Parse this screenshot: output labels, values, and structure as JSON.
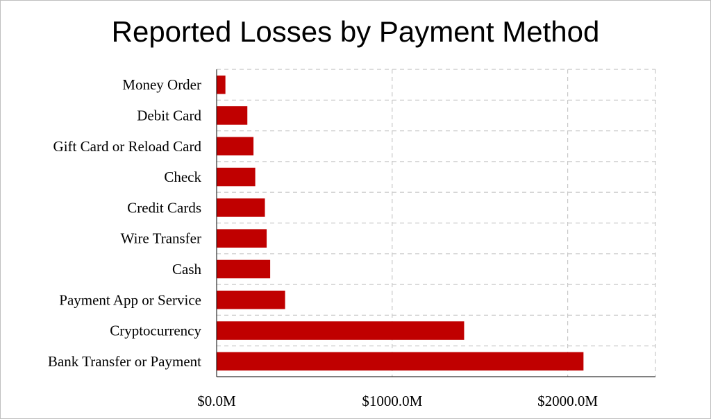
{
  "chart_data": {
    "type": "bar",
    "orientation": "horizontal",
    "title": "Reported Losses by Payment Method",
    "xlabel": "",
    "ylabel": "",
    "categories": [
      "Money Order",
      "Debit Card",
      "Gift Card or Reload Card",
      "Check",
      "Credit Cards",
      "Wire Transfer",
      "Cash",
      "Payment App or Service",
      "Cryptocurrency",
      "Bank Transfer or Payment"
    ],
    "values": [
      50,
      175,
      210,
      220,
      275,
      285,
      305,
      390,
      1410,
      2090
    ],
    "unit": "$M",
    "xlim": [
      0,
      2500
    ],
    "x_ticks": [
      0,
      1000,
      2000
    ],
    "x_tick_labels": [
      "$0.0M",
      "$1000.0M",
      "$2000.0M"
    ],
    "grid": true,
    "bar_color": "#c00000",
    "grid_color": "#c8c8c8",
    "legend": "none"
  }
}
